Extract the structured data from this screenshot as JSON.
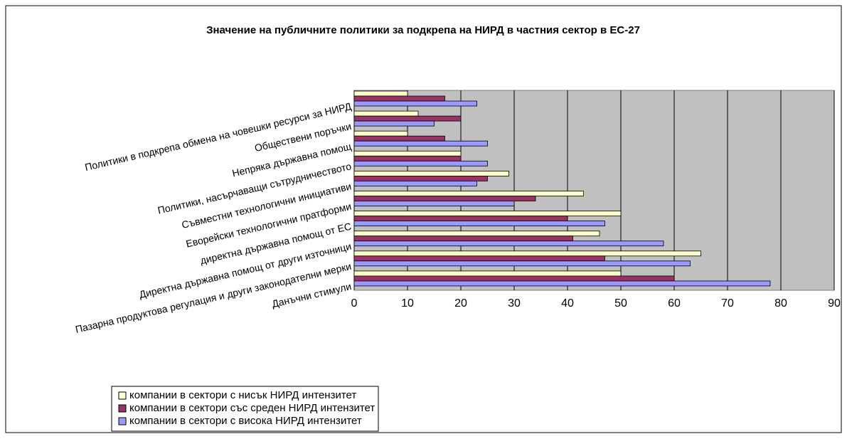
{
  "chart_data": {
    "type": "hbar",
    "title": "Значение на публичните политики за подкрепа на НИРД в частния сектор в ЕС-27",
    "categories": [
      "Политики в подкрепа обмена на човешки ресурси за НИРД",
      "Обществени поръчки",
      "Непряка държавна помощ",
      "Политики, насърчаващи сътрудничеството",
      "Съвместни технологични инициативи",
      "Еворейски технологични пратформи",
      "директна държавна помощ от ЕС",
      "Директна държавна помощ от други източници",
      "Пазарна продуктова регулация и други законодателни мерки",
      "Данъчни стимули"
    ],
    "series": [
      {
        "name": "компании в сектори с нисък НИРД интензитет",
        "color": "#ffffcc",
        "values": [
          10,
          12,
          10,
          20,
          29,
          43,
          50,
          46,
          65,
          50
        ]
      },
      {
        "name": "компании в сектори със среден НИРД интензитет",
        "color": "#993366",
        "values": [
          17,
          20,
          17,
          20,
          25,
          34,
          40,
          41,
          47,
          60
        ]
      },
      {
        "name": "компании в сектори с висока НИРД интензитет",
        "color": "#9999ff",
        "values": [
          23,
          15,
          25,
          25,
          23,
          30,
          47,
          58,
          63,
          78
        ]
      }
    ],
    "xlim": [
      0,
      90
    ],
    "xticks": [
      0,
      10,
      20,
      30,
      40,
      50,
      60,
      70,
      80,
      90
    ],
    "grid": true
  }
}
